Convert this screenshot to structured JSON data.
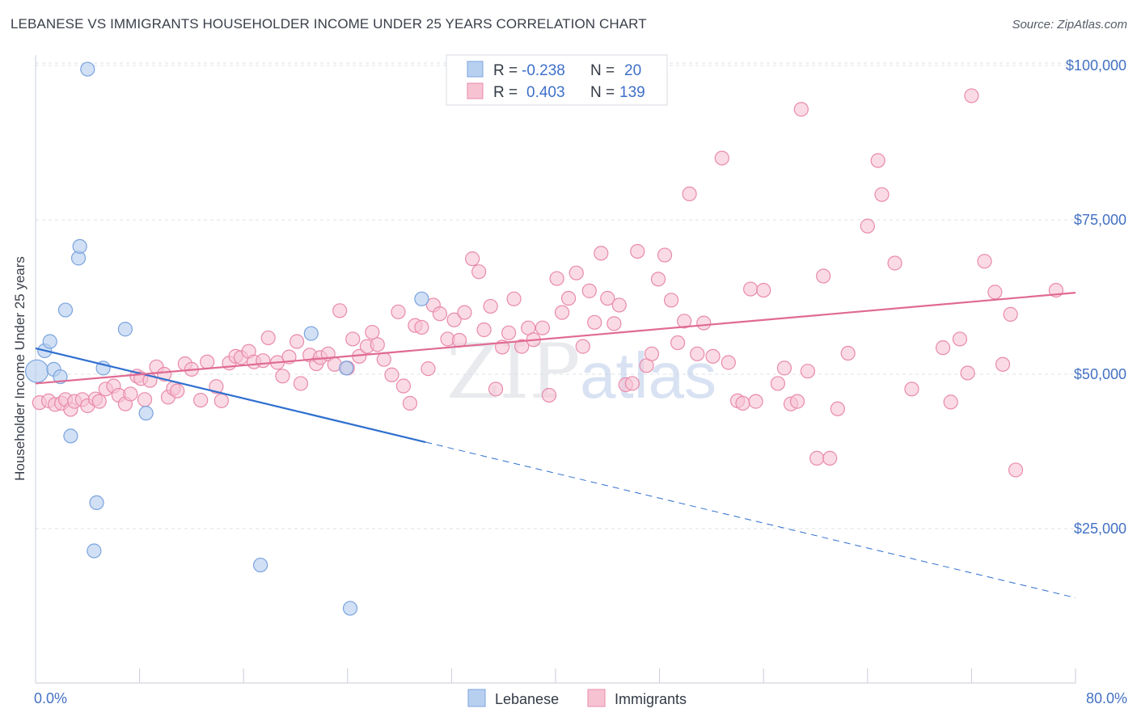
{
  "title": "LEBANESE VS IMMIGRANTS HOUSEHOLDER INCOME UNDER 25 YEARS CORRELATION CHART",
  "source": "Source: ZipAtlas.com",
  "watermark": {
    "zip": "ZIP",
    "atlas": "atlas"
  },
  "colors": {
    "lebanese_fill": "#b8d0f0",
    "lebanese_stroke": "#7aa3de",
    "lebanese_line": "#2f6fcf",
    "immigrants_fill": "#f7c3d3",
    "immigrants_stroke": "#e98aa9",
    "immigrants_line": "#e06a93",
    "tick_blue": "#4472c4",
    "grid": "#dde1e6"
  },
  "legend": {
    "rows": [
      {
        "r_label": "R =",
        "r_value": "-0.238",
        "n_label": "N =",
        "n_value": "20"
      },
      {
        "r_label": "R =",
        "r_value": "0.403",
        "n_label": "N =",
        "n_value": "139"
      }
    ]
  },
  "bottom_legend": [
    "Lebanese",
    "Immigrants"
  ],
  "chart_data": {
    "type": "scatter",
    "title": "LEBANESE VS IMMIGRANTS HOUSEHOLDER INCOME UNDER 25 YEARS CORRELATION CHART",
    "xlabel": "",
    "ylabel": "Householder Income Under 25 years",
    "xlim": [
      0,
      80
    ],
    "ylim": [
      0,
      105000
    ],
    "x_tick_labels": [
      "0.0%",
      "80.0%"
    ],
    "y_ticks": [
      25000,
      50000,
      75000,
      100000
    ],
    "y_tick_labels": [
      "$25,000",
      "$50,000",
      "$75,000",
      "$100,000"
    ],
    "grid": true,
    "series": [
      {
        "name": "Lebanese",
        "points": [
          [
            0.1,
            50500
          ],
          [
            0.7,
            53800
          ],
          [
            1.1,
            55300
          ],
          [
            1.4,
            50800
          ],
          [
            1.9,
            49600
          ],
          [
            2.3,
            60400
          ],
          [
            2.7,
            40000
          ],
          [
            3.3,
            68800
          ],
          [
            3.4,
            70700
          ],
          [
            4.0,
            99400
          ],
          [
            4.5,
            21400
          ],
          [
            4.7,
            29200
          ],
          [
            5.2,
            51000
          ],
          [
            6.9,
            57300
          ],
          [
            8.5,
            43700
          ],
          [
            17.3,
            19100
          ],
          [
            21.2,
            56600
          ],
          [
            23.9,
            51000
          ],
          [
            24.2,
            12100
          ],
          [
            29.7,
            62200
          ]
        ],
        "trend": {
          "x0": 0,
          "y0": 54200,
          "x1": 30,
          "y1": 39000,
          "dash_to_x": 80,
          "dash_to_y": 13800
        }
      },
      {
        "name": "Immigrants",
        "points": [
          [
            0.3,
            45400
          ],
          [
            1.0,
            45700
          ],
          [
            1.5,
            45100
          ],
          [
            2.0,
            45300
          ],
          [
            2.3,
            45900
          ],
          [
            2.7,
            44300
          ],
          [
            3.0,
            45600
          ],
          [
            3.6,
            45900
          ],
          [
            4.0,
            44900
          ],
          [
            4.6,
            46000
          ],
          [
            4.9,
            45600
          ],
          [
            5.4,
            47600
          ],
          [
            6.0,
            48100
          ],
          [
            6.4,
            46600
          ],
          [
            6.9,
            45200
          ],
          [
            7.3,
            46800
          ],
          [
            7.8,
            49700
          ],
          [
            8.1,
            49300
          ],
          [
            8.4,
            45900
          ],
          [
            8.8,
            49000
          ],
          [
            9.3,
            51200
          ],
          [
            9.9,
            50000
          ],
          [
            10.2,
            46300
          ],
          [
            10.6,
            47700
          ],
          [
            10.9,
            47300
          ],
          [
            11.5,
            51700
          ],
          [
            12.0,
            50800
          ],
          [
            12.7,
            45800
          ],
          [
            13.2,
            52000
          ],
          [
            13.9,
            48000
          ],
          [
            14.3,
            45700
          ],
          [
            14.9,
            51800
          ],
          [
            15.4,
            52900
          ],
          [
            15.8,
            52700
          ],
          [
            16.4,
            53700
          ],
          [
            16.8,
            52000
          ],
          [
            17.5,
            52200
          ],
          [
            17.9,
            55900
          ],
          [
            18.6,
            51900
          ],
          [
            19.0,
            49700
          ],
          [
            19.5,
            52800
          ],
          [
            20.1,
            55300
          ],
          [
            20.4,
            48500
          ],
          [
            21.1,
            53100
          ],
          [
            21.6,
            51700
          ],
          [
            21.9,
            52700
          ],
          [
            22.5,
            53300
          ],
          [
            23.0,
            51600
          ],
          [
            23.4,
            60300
          ],
          [
            24.0,
            51000
          ],
          [
            24.4,
            55700
          ],
          [
            24.9,
            52900
          ],
          [
            25.5,
            54500
          ],
          [
            25.9,
            56800
          ],
          [
            26.3,
            54800
          ],
          [
            26.8,
            52400
          ],
          [
            27.4,
            49900
          ],
          [
            27.9,
            60100
          ],
          [
            28.3,
            48100
          ],
          [
            28.8,
            45300
          ],
          [
            29.2,
            57900
          ],
          [
            29.7,
            57600
          ],
          [
            30.2,
            50900
          ],
          [
            30.6,
            61200
          ],
          [
            31.1,
            59800
          ],
          [
            31.7,
            55700
          ],
          [
            32.2,
            58800
          ],
          [
            32.6,
            55500
          ],
          [
            33.0,
            60000
          ],
          [
            33.6,
            68700
          ],
          [
            34.1,
            66600
          ],
          [
            34.5,
            57200
          ],
          [
            35.0,
            61000
          ],
          [
            35.4,
            47600
          ],
          [
            35.9,
            54400
          ],
          [
            36.4,
            56700
          ],
          [
            36.8,
            62200
          ],
          [
            37.4,
            54500
          ],
          [
            37.9,
            57500
          ],
          [
            38.3,
            55600
          ],
          [
            39.0,
            57500
          ],
          [
            39.5,
            46600
          ],
          [
            40.1,
            65500
          ],
          [
            40.5,
            60000
          ],
          [
            41.0,
            62300
          ],
          [
            41.6,
            66400
          ],
          [
            42.1,
            54500
          ],
          [
            42.6,
            63500
          ],
          [
            43.0,
            58400
          ],
          [
            43.5,
            69600
          ],
          [
            44.0,
            62300
          ],
          [
            44.5,
            58200
          ],
          [
            44.9,
            61200
          ],
          [
            45.4,
            48300
          ],
          [
            45.9,
            48500
          ],
          [
            46.3,
            69900
          ],
          [
            47.0,
            51400
          ],
          [
            47.4,
            53300
          ],
          [
            47.9,
            65400
          ],
          [
            48.4,
            69300
          ],
          [
            48.9,
            62000
          ],
          [
            49.4,
            55100
          ],
          [
            49.9,
            58600
          ],
          [
            50.3,
            79200
          ],
          [
            50.9,
            53300
          ],
          [
            51.4,
            58300
          ],
          [
            52.1,
            52900
          ],
          [
            52.8,
            85000
          ],
          [
            53.3,
            51900
          ],
          [
            54.0,
            45700
          ],
          [
            54.4,
            45300
          ],
          [
            55.0,
            63800
          ],
          [
            55.4,
            45600
          ],
          [
            56.0,
            63600
          ],
          [
            57.1,
            48500
          ],
          [
            57.6,
            51000
          ],
          [
            58.1,
            45200
          ],
          [
            58.6,
            45600
          ],
          [
            58.9,
            92900
          ],
          [
            59.4,
            50500
          ],
          [
            60.1,
            36400
          ],
          [
            60.6,
            65900
          ],
          [
            61.1,
            36400
          ],
          [
            61.7,
            44400
          ],
          [
            62.5,
            53400
          ],
          [
            64.0,
            74000
          ],
          [
            64.8,
            84600
          ],
          [
            65.1,
            79100
          ],
          [
            66.1,
            68000
          ],
          [
            67.4,
            47600
          ],
          [
            69.8,
            54300
          ],
          [
            70.4,
            45500
          ],
          [
            71.1,
            55700
          ],
          [
            71.7,
            50200
          ],
          [
            72.0,
            95100
          ],
          [
            73.0,
            68300
          ],
          [
            73.8,
            63300
          ],
          [
            74.4,
            51600
          ],
          [
            75.0,
            59700
          ],
          [
            75.4,
            34500
          ],
          [
            78.5,
            63600
          ]
        ],
        "trend": {
          "x0": 0,
          "y0": 48500,
          "x1": 80,
          "y1": 63200
        }
      }
    ]
  }
}
